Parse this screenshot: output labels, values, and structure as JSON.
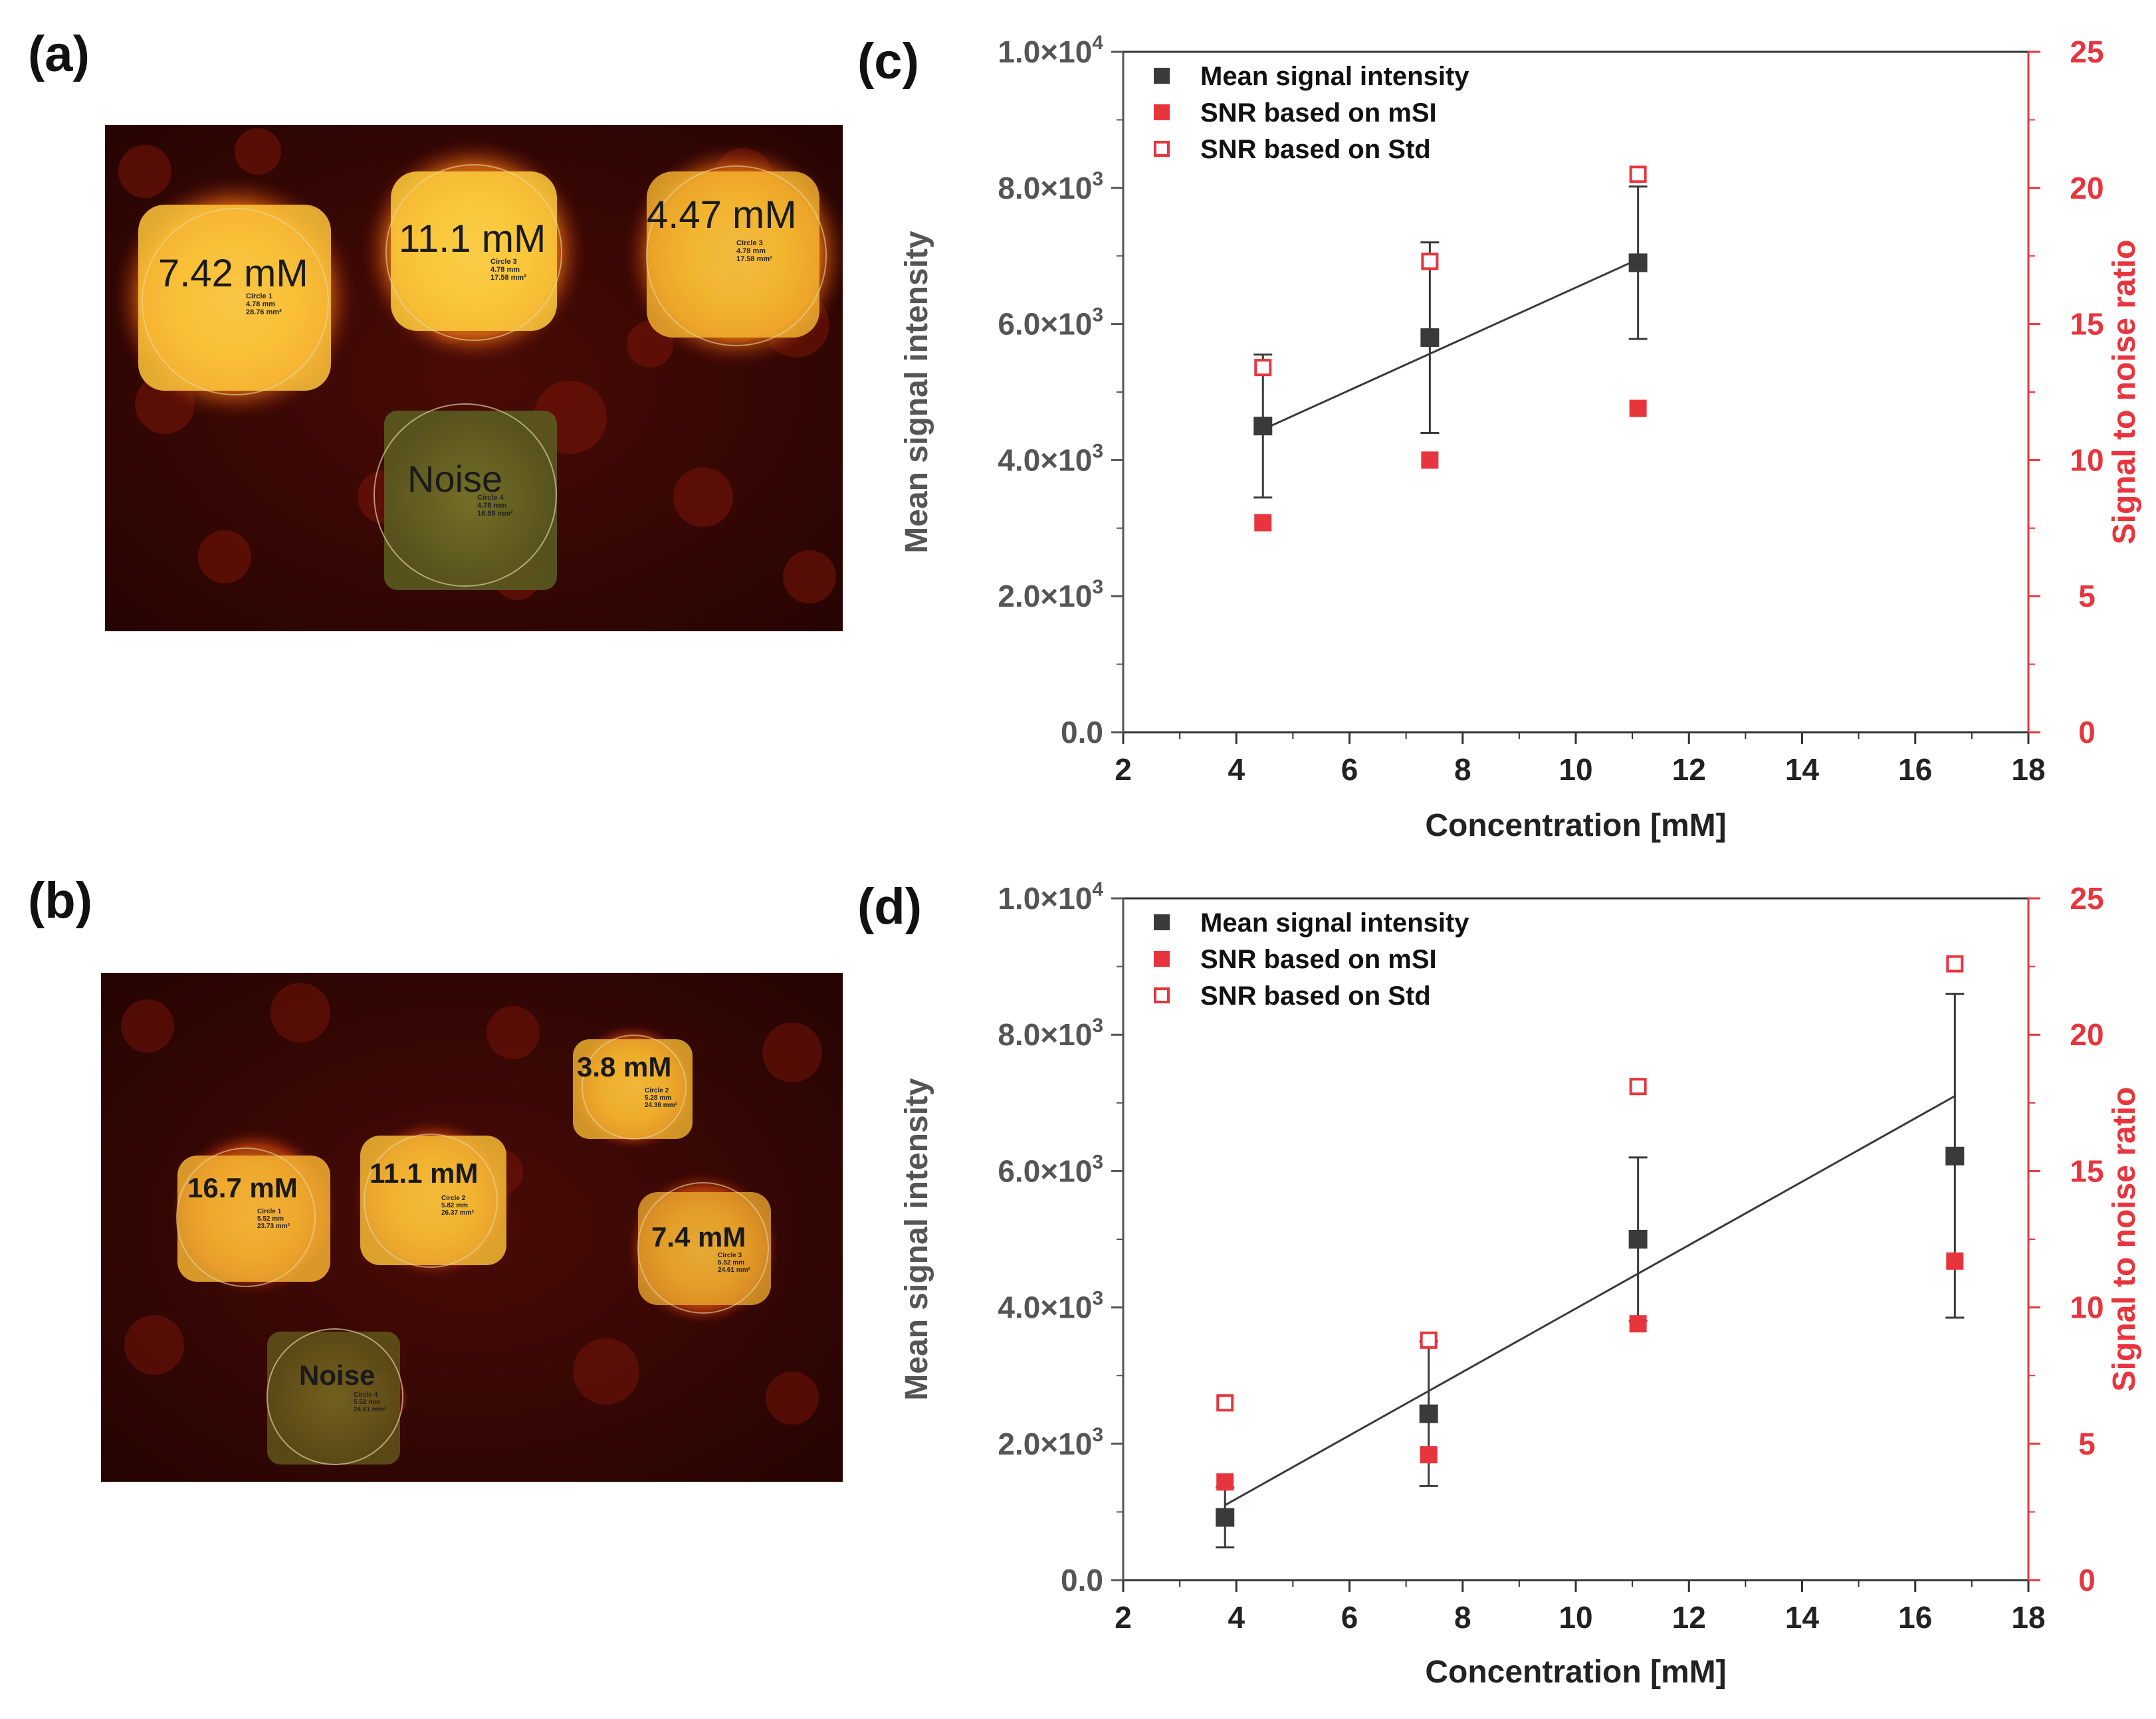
{
  "panels": {
    "a": {
      "label": "(a)",
      "regions": [
        {
          "text": "7.42 mM",
          "info": [
            "Circle 1",
            "4.78 mm",
            "28.76 mm²"
          ]
        },
        {
          "text": "11.1 mM",
          "info": [
            "Circle 3",
            "4.78 mm",
            "17.58 mm²"
          ]
        },
        {
          "text": "4.47 mM",
          "info": [
            "Circle 3",
            "4.78 mm",
            "17.58 mm²"
          ]
        },
        {
          "text": "Noise",
          "info": [
            "Circle 4",
            "4.78 mm",
            "16.58 mm²"
          ]
        }
      ]
    },
    "b": {
      "label": "(b)",
      "regions": [
        {
          "text": "3.8 mM",
          "info": [
            "Circle 2",
            "5.28 mm",
            "24.36 mm²"
          ]
        },
        {
          "text": "16.7 mM",
          "info": [
            "Circle 1",
            "5.52 mm",
            "23.73 mm²"
          ]
        },
        {
          "text": "11.1 mM",
          "info": [
            "Circle 2",
            "5.82 mm",
            "26.37 mm²"
          ]
        },
        {
          "text": "7.4 mM",
          "info": [
            "Circle 3",
            "5.52 mm",
            "24.61 mm²"
          ]
        },
        {
          "text": "Noise",
          "info": [
            "Circle 4",
            "5.52 mm",
            "24.61 mm²"
          ]
        }
      ]
    }
  },
  "colors": {
    "mean": "#3a3a3a",
    "snr": "#e8353d",
    "axis_left": "#555555",
    "axis_right": "#e8353d"
  },
  "chart_data": [
    {
      "label": "(c)",
      "type": "scatter",
      "xlabel": "Concentration [mM]",
      "ylabel": "Mean signal intensity",
      "y2label": "Signal to noise ratio",
      "xlim": [
        2,
        18
      ],
      "ylim": [
        0,
        10000
      ],
      "y2lim": [
        0,
        25
      ],
      "xticks": [
        "2",
        "4",
        "6",
        "8",
        "10",
        "12",
        "14",
        "16",
        "18"
      ],
      "yticks": [
        {
          "base": "0.0",
          "exp": ""
        },
        {
          "base": "2.0×10",
          "exp": "3"
        },
        {
          "base": "4.0×10",
          "exp": "3"
        },
        {
          "base": "6.0×10",
          "exp": "3"
        },
        {
          "base": "8.0×10",
          "exp": "3"
        },
        {
          "base": "1.0×10",
          "exp": "4"
        }
      ],
      "y2ticks": [
        "0",
        "5",
        "10",
        "15",
        "20",
        "25"
      ],
      "legend": [
        "Mean signal intensity",
        "SNR based on mSI",
        "SNR based on Std"
      ],
      "mean_signal": {
        "x": [
          4.47,
          7.42,
          11.1
        ],
        "y": [
          4500,
          5800,
          6900
        ],
        "err_low": [
          3450,
          4400,
          5780
        ],
        "err_high": [
          5550,
          7200,
          8020
        ]
      },
      "snr_msi": {
        "x": [
          4.47,
          7.42,
          11.1
        ],
        "y": [
          7.7,
          10.0,
          11.9
        ]
      },
      "snr_std": {
        "x": [
          4.47,
          7.42,
          11.1
        ],
        "y": [
          13.4,
          17.3,
          20.5
        ]
      },
      "fit": {
        "x": [
          4.47,
          11.1
        ],
        "y": [
          4450,
          6950
        ]
      }
    },
    {
      "label": "(d)",
      "type": "scatter",
      "xlabel": "Concentration [mM]",
      "ylabel": "Mean signal intensity",
      "y2label": "Signal to noise ratio",
      "xlim": [
        2,
        18
      ],
      "ylim": [
        0,
        10000
      ],
      "y2lim": [
        0,
        25
      ],
      "xticks": [
        "2",
        "4",
        "6",
        "8",
        "10",
        "12",
        "14",
        "16",
        "18"
      ],
      "yticks": [
        {
          "base": "0.0",
          "exp": ""
        },
        {
          "base": "2.0×10",
          "exp": "3"
        },
        {
          "base": "4.0×10",
          "exp": "3"
        },
        {
          "base": "6.0×10",
          "exp": "3"
        },
        {
          "base": "8.0×10",
          "exp": "3"
        },
        {
          "base": "1.0×10",
          "exp": "4"
        }
      ],
      "y2ticks": [
        "0",
        "5",
        "10",
        "15",
        "20",
        "25"
      ],
      "legend": [
        "Mean signal intensity",
        "SNR based on mSI",
        "SNR based on Std"
      ],
      "mean_signal": {
        "x": [
          3.8,
          7.4,
          11.1,
          16.7
        ],
        "y": [
          920,
          2440,
          5000,
          6220
        ],
        "err_low": [
          480,
          1380,
          3800,
          3850
        ],
        "err_high": [
          1360,
          3500,
          6200,
          8600
        ]
      },
      "snr_msi": {
        "x": [
          3.8,
          7.4,
          11.1,
          16.7
        ],
        "y": [
          3.6,
          4.6,
          9.4,
          11.7
        ]
      },
      "snr_std": {
        "x": [
          3.8,
          7.4,
          11.1,
          16.7
        ],
        "y": [
          6.5,
          8.8,
          18.1,
          22.6
        ]
      },
      "fit": {
        "x": [
          3.8,
          16.7
        ],
        "y": [
          1100,
          7100
        ]
      }
    }
  ]
}
